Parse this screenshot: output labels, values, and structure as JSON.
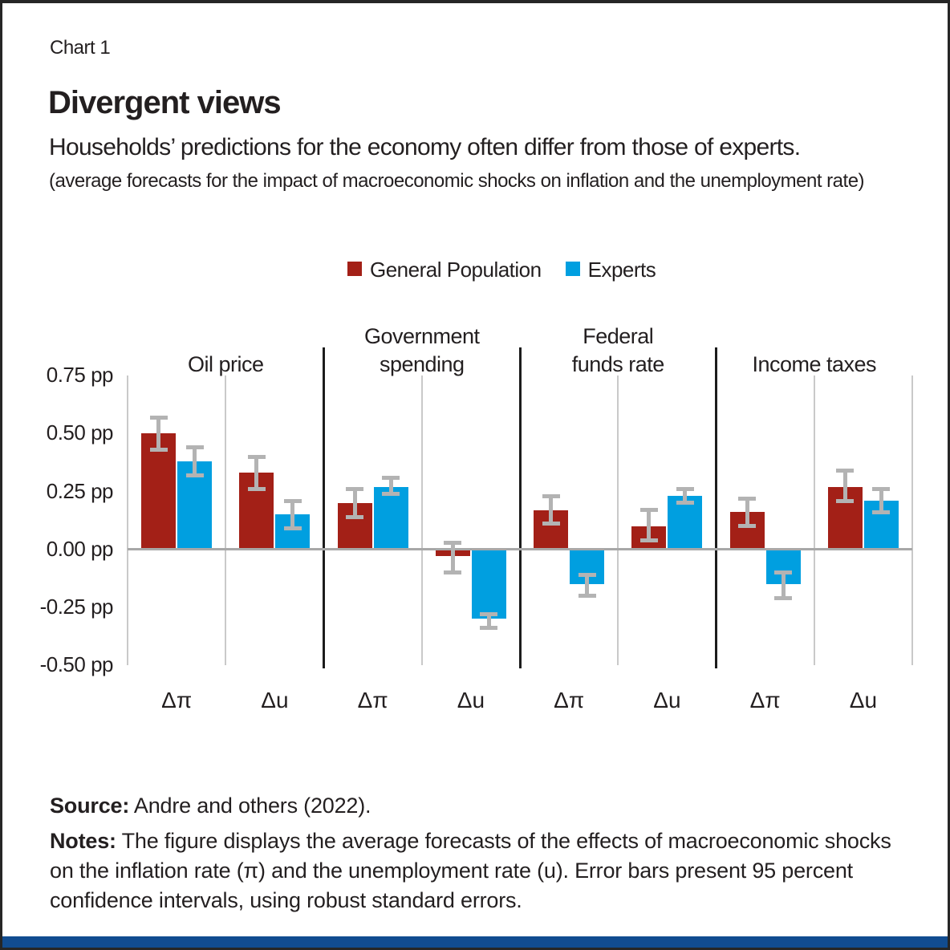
{
  "header": {
    "chart_label": "Chart 1",
    "title": "Divergent views",
    "subtitle": "Households’ predictions for the economy often differ from those of experts.",
    "parenthetical": "(average forecasts for the impact of macroeconomic shocks on inflation and the unemployment rate)"
  },
  "legend": {
    "items": [
      {
        "label": "General Population",
        "color": "#A32017"
      },
      {
        "label": "Experts",
        "color": "#009FE0"
      }
    ]
  },
  "chart_data": {
    "type": "bar",
    "unit": "pp",
    "groups": [
      "Oil price",
      "Government\nspending",
      "Federal\nfunds rate",
      "Income taxes"
    ],
    "categories": [
      "Δπ",
      "Δu"
    ],
    "slot_order": [
      "Oil price Δπ",
      "Oil price Δu",
      "Government spending Δπ",
      "Government spending Δu",
      "Federal funds rate Δπ",
      "Federal funds rate Δu",
      "Income taxes Δπ",
      "Income taxes Δu"
    ],
    "series": [
      {
        "name": "General Population",
        "color": "#A32017",
        "values": [
          0.5,
          0.33,
          0.2,
          -0.03,
          0.17,
          0.1,
          0.16,
          0.27
        ],
        "ci_low": [
          0.43,
          0.26,
          0.14,
          -0.1,
          0.11,
          0.04,
          0.1,
          0.21
        ],
        "ci_high": [
          0.57,
          0.4,
          0.26,
          0.03,
          0.23,
          0.17,
          0.22,
          0.34
        ]
      },
      {
        "name": "Experts",
        "color": "#009FE0",
        "values": [
          0.38,
          0.15,
          0.27,
          -0.3,
          -0.15,
          0.23,
          -0.15,
          0.21
        ],
        "ci_low": [
          0.32,
          0.09,
          0.24,
          -0.34,
          -0.2,
          0.2,
          -0.21,
          0.16
        ],
        "ci_high": [
          0.44,
          0.21,
          0.31,
          -0.28,
          -0.11,
          0.26,
          -0.1,
          0.26
        ]
      }
    ],
    "y_ticks": [
      "0.75 pp",
      "0.50 pp",
      "0.25 pp",
      "0.00 pp",
      "-0.25 pp",
      "-0.50 pp"
    ],
    "tick_values": [
      0.75,
      0.5,
      0.25,
      0.0,
      -0.25,
      -0.5
    ],
    "ylim": [
      -0.5,
      0.75
    ],
    "grid": "vertical category separators",
    "legend_position": "top center",
    "error_bars": "95 percent confidence intervals"
  },
  "footer": {
    "source_label": "Source:",
    "source_text": " Andre and others (2022).",
    "notes_label": "Notes:",
    "notes_text": " The figure displays the average forecasts of the effects of macroeconomic shocks on the inflation rate (π) and the unemployment rate (u). Error bars present 95 percent confidence intervals, using robust standard errors."
  },
  "colors": {
    "general_population_red": "#A32017",
    "experts_blue": "#009FE0",
    "error_bar_gray": "#B3B3B3",
    "axis_gray": "#A8A8A8",
    "grid_gray": "#C9C9C9",
    "separator_black": "#1C1C1C",
    "text": "#231F20",
    "bottom_bar_blue": "#114C90",
    "page_border": "#262626"
  }
}
